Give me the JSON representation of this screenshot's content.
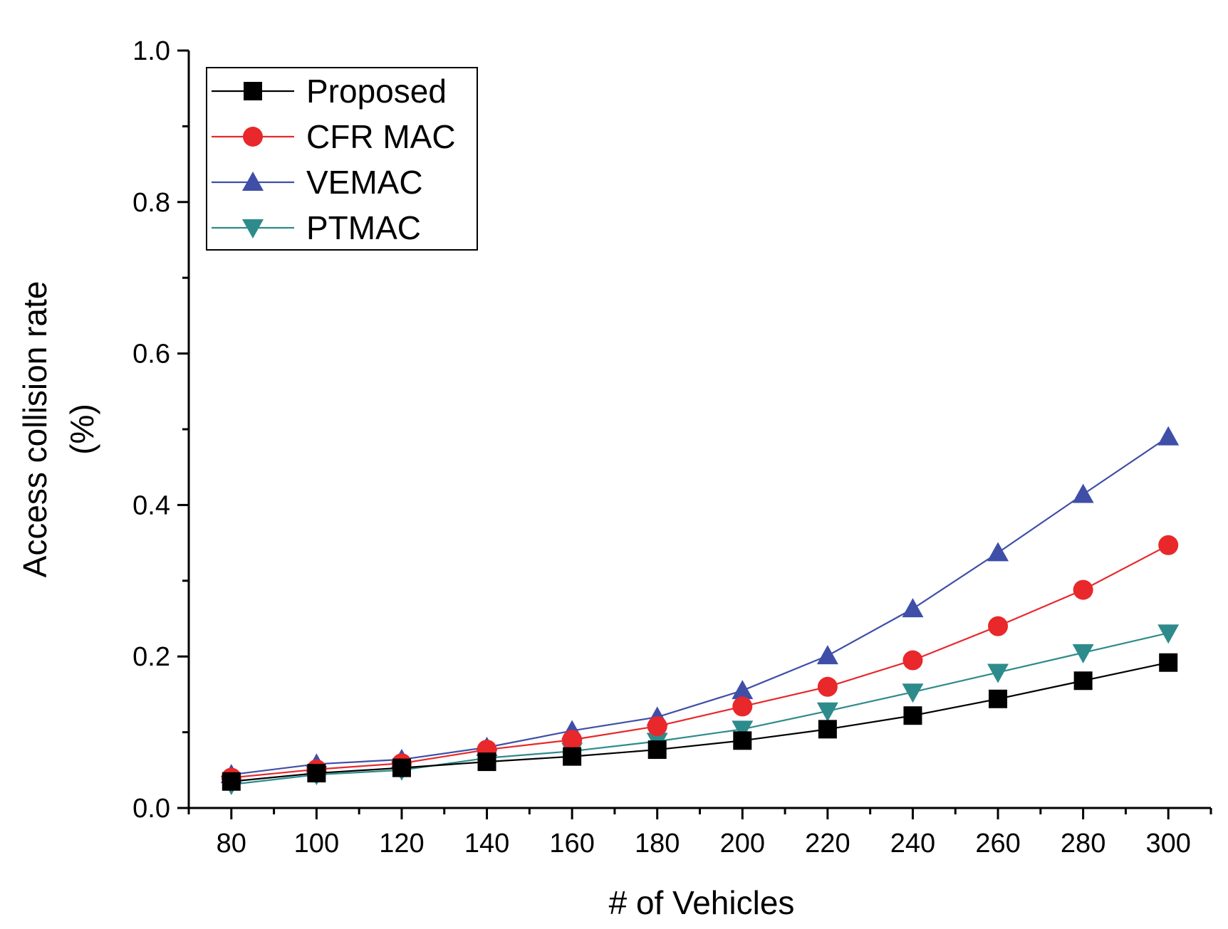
{
  "chart_data": {
    "type": "line",
    "title": "",
    "xlabel": "# of Vehicles",
    "ylabel_line1": "Access collision rate",
    "ylabel_line2": "(%)",
    "x": [
      80,
      100,
      120,
      140,
      160,
      180,
      200,
      220,
      240,
      260,
      280,
      300
    ],
    "x_tick_labels": [
      "80",
      "100",
      "120",
      "140",
      "160",
      "180",
      "200",
      "220",
      "240",
      "260",
      "280",
      "300"
    ],
    "xlim": [
      70,
      310
    ],
    "ylim": [
      0.0,
      1.0
    ],
    "y_tick_labels": [
      "0.0",
      "0.2",
      "0.4",
      "0.6",
      "0.8",
      "1.0"
    ],
    "y_ticks": [
      0.0,
      0.2,
      0.4,
      0.6,
      0.8,
      1.0
    ],
    "grid": false,
    "legend_position": "top-left",
    "series": [
      {
        "name": "Proposed",
        "color": "#000000",
        "marker": "square",
        "values": [
          0.035,
          0.046,
          0.053,
          0.061,
          0.068,
          0.077,
          0.089,
          0.104,
          0.122,
          0.144,
          0.168,
          0.192
        ]
      },
      {
        "name": "CFR MAC",
        "color": "#e8282b",
        "marker": "circle",
        "values": [
          0.04,
          0.051,
          0.059,
          0.077,
          0.09,
          0.108,
          0.134,
          0.16,
          0.195,
          0.24,
          0.288,
          0.347
        ]
      },
      {
        "name": "VEMAC",
        "color": "#3f4fa8",
        "marker": "triangle-up",
        "values": [
          0.044,
          0.058,
          0.064,
          0.08,
          0.102,
          0.12,
          0.155,
          0.201,
          0.263,
          0.337,
          0.414,
          0.49
        ]
      },
      {
        "name": "PTMAC",
        "color": "#2e8b8b",
        "marker": "triangle-down",
        "values": [
          0.031,
          0.044,
          0.05,
          0.066,
          0.075,
          0.088,
          0.104,
          0.128,
          0.153,
          0.179,
          0.205,
          0.231
        ]
      }
    ]
  }
}
